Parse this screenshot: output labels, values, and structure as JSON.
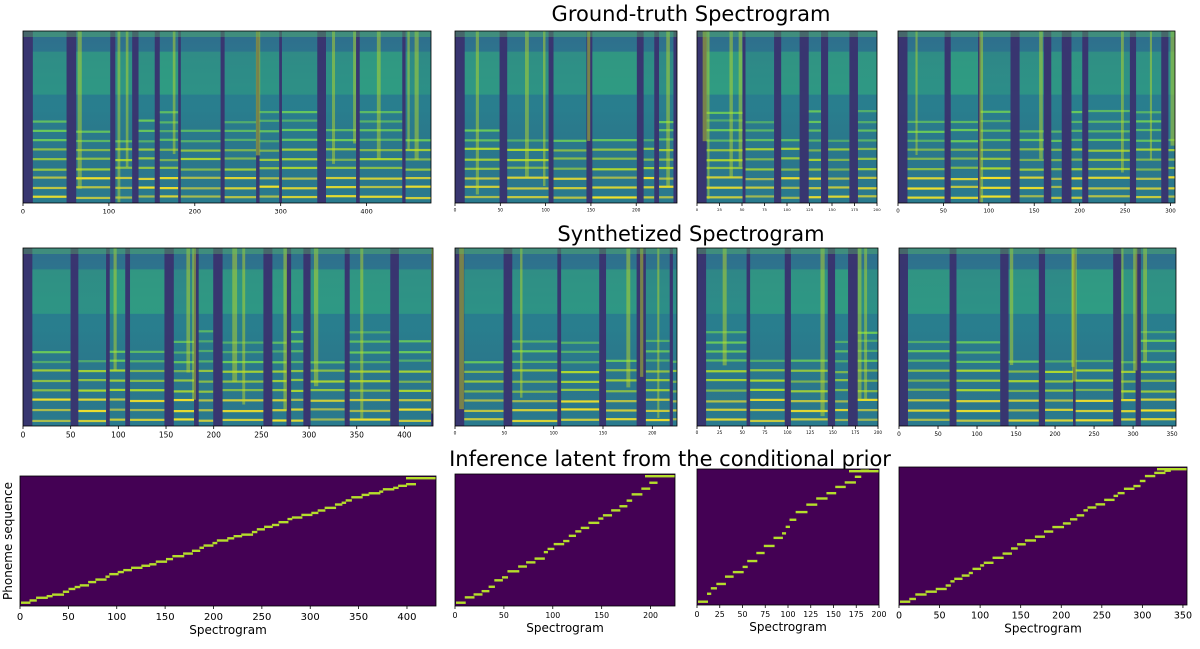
{
  "titles": {
    "row1": "Ground-truth Spectrogram",
    "row2": "Synthetized Spectrogram",
    "row3": "Inference latent from the conditional prior"
  },
  "axis_labels": {
    "xlabel": "Spectrogram",
    "ylabel": "Phoneme sequence"
  },
  "colors": {
    "colormap": "viridis",
    "dark": "#440154",
    "mid": "#21918c",
    "bright": "#fde725",
    "alignment_background": "#440154",
    "alignment_path": "#b5de2b"
  },
  "chart_data": [
    {
      "type": "heatmap",
      "row": 1,
      "col": 1,
      "title": "Ground-truth Spectrogram",
      "x_range": [
        0,
        475
      ],
      "x_ticks": [
        0,
        100,
        200,
        300,
        400
      ]
    },
    {
      "type": "heatmap",
      "row": 1,
      "col": 2,
      "x_range": [
        0,
        245
      ],
      "x_ticks": [
        0,
        50,
        100,
        150,
        200
      ]
    },
    {
      "type": "heatmap",
      "row": 1,
      "col": 3,
      "x_range": [
        0,
        200
      ],
      "x_ticks": [
        0,
        25,
        50,
        75,
        100,
        125,
        150,
        175,
        200
      ]
    },
    {
      "type": "heatmap",
      "row": 1,
      "col": 4,
      "x_range": [
        0,
        305
      ],
      "x_ticks": [
        0,
        50,
        100,
        150,
        200,
        250,
        300
      ]
    },
    {
      "type": "heatmap",
      "row": 2,
      "col": 1,
      "title": "Synthetized Spectrogram",
      "x_range": [
        0,
        430
      ],
      "x_ticks": [
        0,
        50,
        100,
        150,
        200,
        250,
        300,
        350,
        400
      ]
    },
    {
      "type": "heatmap",
      "row": 2,
      "col": 2,
      "x_range": [
        0,
        225
      ],
      "x_ticks": [
        0,
        50,
        100,
        150,
        200
      ]
    },
    {
      "type": "heatmap",
      "row": 2,
      "col": 3,
      "x_range": [
        0,
        200
      ],
      "x_ticks": [
        0,
        25,
        50,
        75,
        100,
        125,
        150,
        175,
        200
      ]
    },
    {
      "type": "heatmap",
      "row": 2,
      "col": 4,
      "x_range": [
        0,
        355
      ],
      "x_ticks": [
        0,
        50,
        100,
        150,
        200,
        250,
        300,
        350
      ]
    },
    {
      "type": "heatmap",
      "row": 3,
      "col": 1,
      "title": "Inference latent from the conditional prior",
      "xlabel": "Spectrogram",
      "ylabel": "Phoneme sequence",
      "x_range": [
        0,
        430
      ],
      "x_ticks": [
        0,
        50,
        100,
        150,
        200,
        250,
        300,
        350,
        400
      ]
    },
    {
      "type": "heatmap",
      "row": 3,
      "col": 2,
      "xlabel": "Spectrogram",
      "x_range": [
        0,
        225
      ],
      "x_ticks": [
        0,
        50,
        100,
        150,
        200
      ]
    },
    {
      "type": "heatmap",
      "row": 3,
      "col": 3,
      "xlabel": "Spectrogram",
      "x_range": [
        0,
        200
      ],
      "x_ticks": [
        0,
        25,
        50,
        75,
        100,
        125,
        150,
        175,
        200
      ]
    },
    {
      "type": "heatmap",
      "row": 3,
      "col": 4,
      "xlabel": "Spectrogram",
      "x_range": [
        0,
        355
      ],
      "x_ticks": [
        0,
        50,
        100,
        150,
        200,
        250,
        300,
        350
      ]
    }
  ]
}
